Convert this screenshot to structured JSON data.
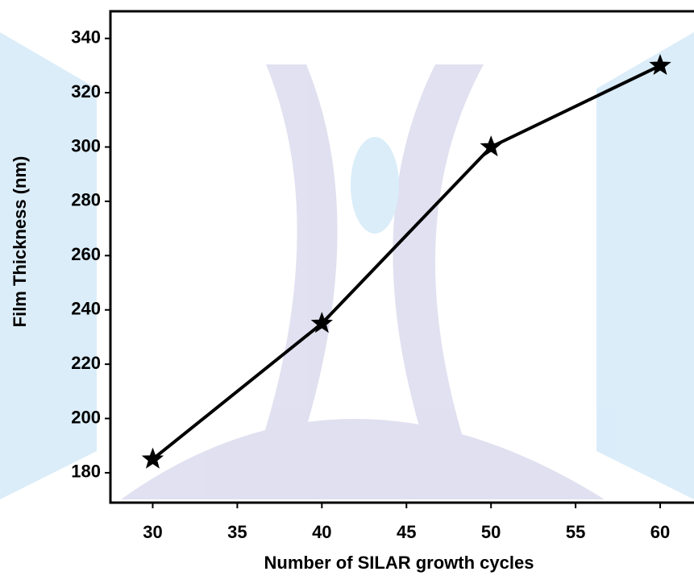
{
  "chart_data": {
    "type": "line",
    "x_label": "Number of SILAR growth cycles",
    "y_label": "Film Thickness (nm)",
    "x": [
      30,
      40,
      50,
      60
    ],
    "values": [
      185,
      235,
      300,
      330
    ],
    "color": "#000000",
    "marker": "star",
    "xlim": [
      27.5,
      62
    ],
    "xticks": [
      30,
      35,
      40,
      45,
      50,
      55,
      60
    ],
    "ylim": [
      169,
      350
    ],
    "yticks": [
      180,
      200,
      220,
      240,
      260,
      280,
      300,
      320,
      340
    ]
  }
}
